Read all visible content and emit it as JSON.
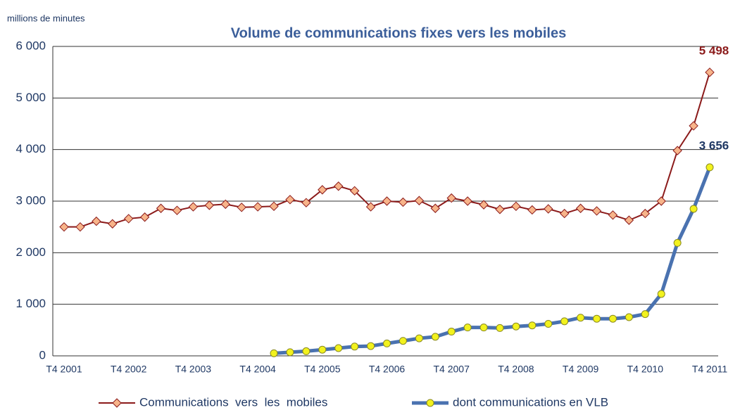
{
  "chart_data": {
    "type": "line",
    "title": "Volume de communications fixes vers les mobiles",
    "y_axis_label": "millions de minutes",
    "categories": [
      "T4 2001",
      null,
      null,
      null,
      "T4 2002",
      null,
      null,
      null,
      "T4 2003",
      null,
      null,
      null,
      "T4 2004",
      null,
      null,
      null,
      "T4 2005",
      null,
      null,
      null,
      "T4 2006",
      null,
      null,
      null,
      "T4 2007",
      null,
      null,
      null,
      "T4 2008",
      null,
      null,
      null,
      "T4 2009",
      null,
      null,
      null,
      "T4 2010",
      null,
      null,
      null,
      "T4 2011"
    ],
    "series": [
      {
        "name": "Communications  vers  les  mobiles",
        "color": "#8b1a1a",
        "marker_color": "#f7b48a",
        "values": [
          2500,
          2500,
          2610,
          2560,
          2660,
          2690,
          2860,
          2820,
          2890,
          2920,
          2940,
          2880,
          2890,
          2900,
          3030,
          2970,
          3220,
          3290,
          3200,
          2890,
          3000,
          2980,
          3010,
          2860,
          3060,
          3000,
          2930,
          2840,
          2900,
          2830,
          2850,
          2760,
          2860,
          2810,
          2730,
          2630,
          2760,
          3000,
          3980,
          4460,
          5498
        ],
        "value_labels": [
          null,
          null,
          null,
          null,
          null,
          null,
          null,
          null,
          null,
          null,
          null,
          null,
          null,
          null,
          null,
          null,
          null,
          null,
          null,
          null,
          null,
          null,
          null,
          null,
          null,
          null,
          null,
          null,
          null,
          null,
          null,
          null,
          null,
          null,
          null,
          null,
          null,
          null,
          null,
          null,
          "5 498"
        ]
      },
      {
        "name": "dont communications en VLB",
        "color": "#4a72b0",
        "marker_color": "#f2f21e",
        "values": [
          null,
          null,
          null,
          null,
          null,
          null,
          null,
          null,
          null,
          null,
          null,
          null,
          null,
          50,
          70,
          90,
          120,
          150,
          180,
          190,
          240,
          290,
          340,
          370,
          470,
          550,
          550,
          540,
          570,
          590,
          620,
          670,
          740,
          720,
          720,
          750,
          810,
          1200,
          2190,
          2850,
          3656
        ],
        "value_labels": [
          null,
          null,
          null,
          null,
          null,
          null,
          null,
          null,
          null,
          null,
          null,
          null,
          null,
          null,
          null,
          null,
          null,
          null,
          null,
          null,
          null,
          null,
          null,
          null,
          null,
          null,
          null,
          null,
          null,
          null,
          null,
          null,
          null,
          null,
          null,
          null,
          null,
          null,
          null,
          null,
          "3 656"
        ]
      }
    ],
    "ylim": [
      0,
      6000
    ],
    "yticks": [
      0,
      {
        "value": 1000,
        "label": "1 000"
      },
      {
        "value": 2000,
        "label": "2 000"
      },
      {
        "value": 3000,
        "label": "3 000"
      },
      {
        "value": 4000,
        "label": "4 000"
      },
      {
        "value": 5000,
        "label": "5 000"
      },
      {
        "value": 6000,
        "label": "6 000"
      }
    ],
    "grid": true,
    "legend": "bottom"
  }
}
